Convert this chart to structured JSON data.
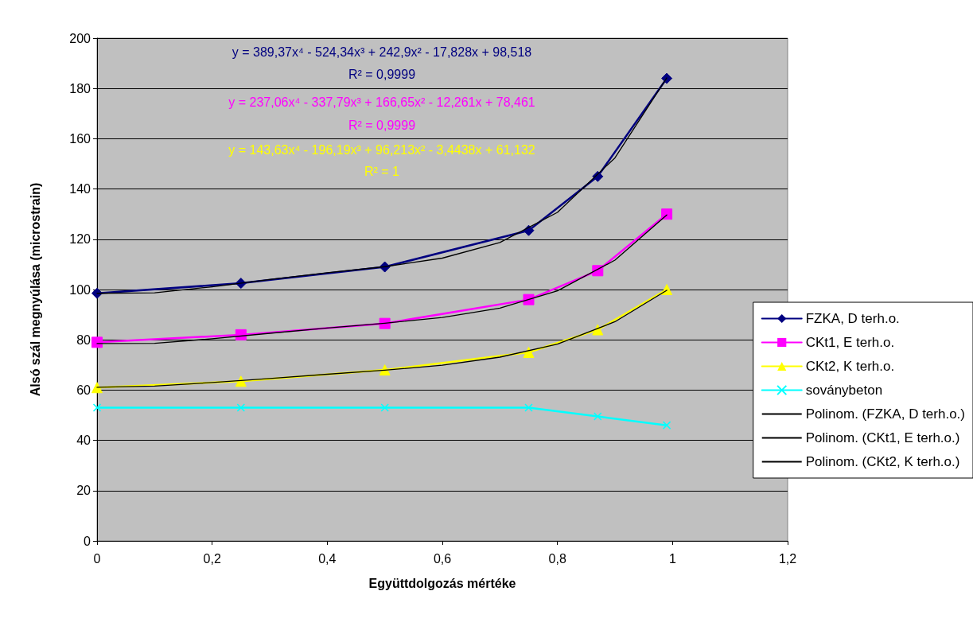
{
  "chart_data": {
    "type": "line",
    "xlabel": "Együttdolgozás mértéke",
    "ylabel": "Alsó szál megnyúlása (microstrain)",
    "xlim": [
      0,
      1.2
    ],
    "xticks": [
      0,
      {
        "value": 0.2,
        "label": "0,2"
      },
      {
        "value": 0.4,
        "label": "0,4"
      },
      {
        "value": 0.6,
        "label": "0,6"
      },
      {
        "value": 0.8,
        "label": "0,8"
      },
      1,
      {
        "value": 1.2,
        "label": "1,2"
      }
    ],
    "ylim": [
      0,
      200
    ],
    "yticks": [
      0,
      20,
      40,
      60,
      80,
      100,
      120,
      140,
      160,
      180,
      200
    ],
    "grid": "y",
    "legend": "right",
    "annotations": [
      "y = 389,37x⁴ - 524,34x³ + 242,9x² - 17,828x + 98,518",
      "R² = 0,9999",
      "y = 237,06x⁴ - 337,79x³ + 166,65x² - 12,261x + 78,461",
      "R² = 0,9999",
      "y = 143,63x⁴ - 196,19x³ + 96,213x² - 3,4438x + 61,132",
      "R² = 1"
    ],
    "x": [
      0,
      0.25,
      0.5,
      0.75,
      0.87,
      0.99
    ],
    "series": [
      {
        "name": "FZKA, D terh.o.",
        "color": "#000080",
        "marker": "diamond",
        "values": [
          98.5,
          102.5,
          109,
          123.5,
          145,
          184
        ]
      },
      {
        "name": "CKt1, E terh.o.",
        "color": "#ff00ff",
        "marker": "square",
        "values": [
          79,
          82,
          86.5,
          96,
          107.5,
          130
        ]
      },
      {
        "name": "CKt2, K terh.o.",
        "color": "#ffff00",
        "marker": "triangle",
        "values": [
          61,
          63.5,
          68,
          75,
          84,
          100
        ]
      },
      {
        "name": "soványbeton",
        "color": "#00ffff",
        "marker": "cross",
        "values": [
          53,
          53,
          53,
          53,
          49.5,
          46
        ]
      },
      {
        "name": "Polinom. (FZKA, D terh.o.)",
        "color": "#000000",
        "marker": "none",
        "x": [
          0,
          0.1,
          0.2,
          0.3,
          0.4,
          0.5,
          0.6,
          0.7,
          0.8,
          0.9,
          0.99
        ],
        "values": [
          98.5,
          98.7,
          101.1,
          104,
          106.7,
          109.1,
          112.5,
          118.7,
          130.7,
          152.4,
          184.2
        ]
      },
      {
        "name": "Polinom. (CKt1, E terh.o.)",
        "color": "#000000",
        "marker": "none",
        "x": [
          0,
          0.1,
          0.2,
          0.3,
          0.4,
          0.5,
          0.6,
          0.7,
          0.8,
          0.9,
          0.99
        ],
        "values": [
          78.5,
          78.6,
          80.4,
          82.6,
          84.7,
          86.6,
          88.9,
          92.6,
          99.5,
          111.7,
          129.7
        ]
      },
      {
        "name": "Polinom. (CKt2, K terh.o.)",
        "color": "#000000",
        "marker": "none",
        "x": [
          0,
          0.1,
          0.2,
          0.3,
          0.4,
          0.5,
          0.6,
          0.7,
          0.8,
          0.9,
          0.99
        ],
        "values": [
          61.1,
          61.6,
          63,
          64.6,
          66.3,
          67.9,
          69.9,
          73.1,
          78.3,
          87.2,
          99.7
        ]
      }
    ]
  }
}
